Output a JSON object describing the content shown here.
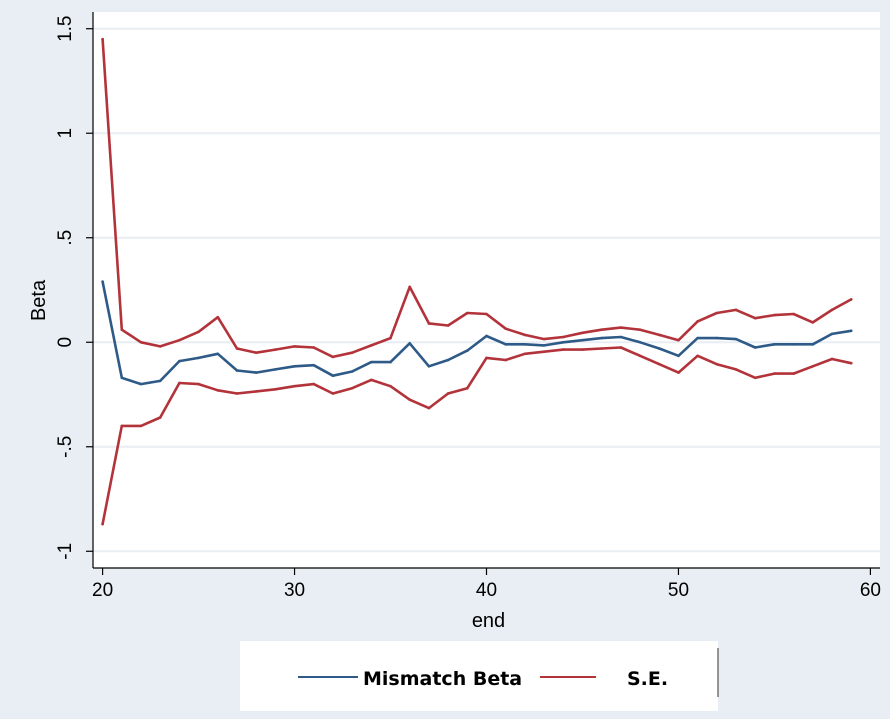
{
  "chart_data": {
    "type": "line",
    "title": "",
    "xlabel": "end",
    "ylabel": "Beta",
    "xlim": [
      19.5,
      60.5
    ],
    "ylim": [
      -1.08,
      1.58
    ],
    "x_ticks": [
      20,
      30,
      40,
      50,
      60
    ],
    "x_tick_labels": [
      "20",
      "30",
      "40",
      "50",
      "60"
    ],
    "y_ticks": [
      -1,
      -0.5,
      0,
      0.5,
      1,
      1.5
    ],
    "y_tick_labels": [
      "-1",
      "-.5",
      "0",
      ".5",
      "1",
      "1.5"
    ],
    "grid": true,
    "legend_position": "bottom",
    "colors": {
      "outer_background": "#e8eef3",
      "plot_background": "#ffffff",
      "gridline": "#e8eef3",
      "axis": "#000000"
    },
    "x": [
      20,
      21,
      22,
      23,
      24,
      25,
      26,
      27,
      28,
      29,
      30,
      31,
      32,
      33,
      34,
      35,
      36,
      37,
      38,
      39,
      40,
      41,
      42,
      43,
      44,
      45,
      46,
      47,
      48,
      49,
      50,
      51,
      52,
      53,
      54,
      55,
      56,
      57,
      58,
      59
    ],
    "series": [
      {
        "name": "Mismatch Beta",
        "color": "#2e5a87",
        "values": [
          0.29,
          -0.17,
          -0.2,
          -0.185,
          -0.09,
          -0.075,
          -0.055,
          -0.135,
          -0.145,
          -0.13,
          -0.115,
          -0.11,
          -0.16,
          -0.14,
          -0.095,
          -0.095,
          -0.005,
          -0.115,
          -0.085,
          -0.04,
          0.03,
          -0.01,
          -0.01,
          -0.015,
          0.0,
          0.01,
          0.02,
          0.025,
          0.0,
          -0.03,
          -0.065,
          0.02,
          0.02,
          0.015,
          -0.025,
          -0.01,
          -0.01,
          -0.01,
          0.04,
          0.055
        ]
      },
      {
        "name": "S.E.",
        "color": "#b3333a",
        "values": [
          1.45,
          0.06,
          0.0,
          -0.02,
          0.01,
          0.05,
          0.12,
          -0.03,
          -0.05,
          -0.035,
          -0.02,
          -0.025,
          -0.07,
          -0.05,
          -0.015,
          0.02,
          0.265,
          0.09,
          0.08,
          0.14,
          0.135,
          0.065,
          0.035,
          0.015,
          0.025,
          0.045,
          0.06,
          0.07,
          0.06,
          0.035,
          0.01,
          0.1,
          0.14,
          0.155,
          0.115,
          0.13,
          0.135,
          0.095,
          0.155,
          0.205
        ]
      },
      {
        "name": "",
        "color": "#b3333a",
        "values": [
          -0.87,
          -0.4,
          -0.4,
          -0.36,
          -0.195,
          -0.2,
          -0.23,
          -0.245,
          -0.235,
          -0.225,
          -0.21,
          -0.2,
          -0.245,
          -0.22,
          -0.18,
          -0.21,
          -0.275,
          -0.315,
          -0.245,
          -0.22,
          -0.075,
          -0.085,
          -0.055,
          -0.045,
          -0.035,
          -0.035,
          -0.03,
          -0.025,
          -0.065,
          -0.105,
          -0.145,
          -0.065,
          -0.105,
          -0.13,
          -0.17,
          -0.15,
          -0.15,
          -0.115,
          -0.08,
          -0.1
        ]
      }
    ],
    "legend": [
      {
        "label": "Mismatch Beta",
        "color": "#2e5a87"
      },
      {
        "label": "S.E.",
        "color": "#b3333a"
      }
    ]
  }
}
